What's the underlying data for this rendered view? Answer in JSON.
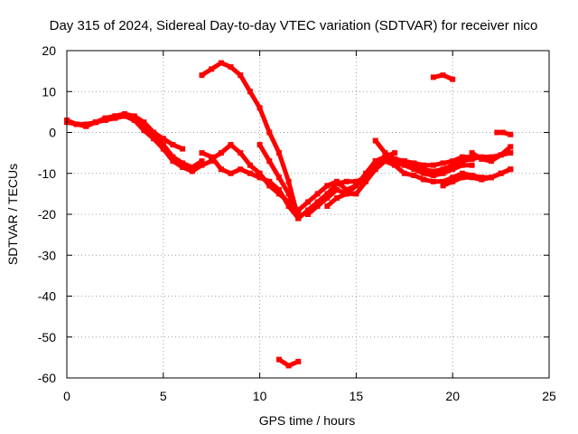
{
  "chart_data": {
    "type": "scatter",
    "title": "Day 315 of 2024, Sidereal Day-to-day VTEC variation (SDTVAR) for receiver nico",
    "xlabel": "GPS time / hours",
    "ylabel": "SDTVAR / TECUs",
    "xlim": [
      0,
      25
    ],
    "ylim": [
      -60,
      20
    ],
    "xticks": [
      0,
      5,
      10,
      15,
      20,
      25
    ],
    "yticks": [
      -60,
      -50,
      -40,
      -30,
      -20,
      -10,
      0,
      10,
      20
    ],
    "grid": true,
    "legend": "none",
    "series": [
      {
        "name": "track-1",
        "x": [
          0,
          0.5,
          1,
          1.5,
          2,
          2.5,
          3,
          3.5,
          4,
          4.5,
          5,
          5.5,
          6,
          6.5,
          7
        ],
        "y": [
          3,
          2,
          1.5,
          2.5,
          3.5,
          4,
          4.5,
          3.5,
          1.5,
          -0.5,
          -3,
          -6,
          -7.5,
          -8.5,
          -7
        ]
      },
      {
        "name": "track-2",
        "x": [
          0,
          0.5,
          1,
          1.5,
          2,
          2.5,
          3,
          3.5,
          4,
          4.5,
          5,
          5.5,
          6,
          6.5,
          7,
          7.5
        ],
        "y": [
          2.5,
          2,
          2,
          2.5,
          3,
          3.5,
          4,
          3,
          0.5,
          -1.5,
          -4,
          -7,
          -8.5,
          -9.5,
          -8,
          -7
        ]
      },
      {
        "name": "track-3",
        "x": [
          1.5,
          2,
          2.5,
          3,
          3.5,
          4,
          4.5,
          5,
          5.5,
          6
        ],
        "y": [
          2.5,
          3.5,
          4,
          4.5,
          4,
          2.5,
          0,
          -1.5,
          -3,
          -4
        ]
      },
      {
        "name": "track-4",
        "x": [
          7,
          7.5,
          8,
          8.5,
          9,
          9.5,
          10,
          10.5,
          11,
          11.5,
          12
        ],
        "y": [
          -5,
          -6,
          -9,
          -10,
          -9,
          -10,
          -11,
          -12,
          -14,
          -18,
          -21
        ]
      },
      {
        "name": "track-5",
        "x": [
          7.5,
          8,
          8.5,
          9,
          9.5,
          10,
          10.5,
          11,
          11.5,
          12
        ],
        "y": [
          -6.5,
          -5,
          -3,
          -5,
          -8,
          -10,
          -13,
          -15,
          -17,
          -19
        ]
      },
      {
        "name": "track-6",
        "x": [
          10,
          10.5,
          11,
          11.5,
          12
        ],
        "y": [
          -3,
          -7,
          -11,
          -15,
          -20
        ]
      },
      {
        "name": "track-7",
        "x": [
          7,
          7.5,
          8,
          8.5,
          9,
          9.5,
          10,
          10.5,
          11,
          11.5,
          12
        ],
        "y": [
          14,
          15.5,
          17,
          16,
          14,
          10,
          6,
          0,
          -5,
          -12,
          -21
        ]
      },
      {
        "name": "track-8",
        "x": [
          11,
          11.5,
          12
        ],
        "y": [
          -55.5,
          -57,
          -56
        ]
      },
      {
        "name": "track-9",
        "x": [
          12,
          12.5,
          13,
          13.5,
          14,
          14.5,
          15,
          15.5,
          16,
          16.5,
          17
        ],
        "y": [
          -21,
          -19,
          -17,
          -15,
          -12.5,
          -12,
          -12,
          -11,
          -8,
          -6,
          -5
        ]
      },
      {
        "name": "track-10",
        "x": [
          12,
          12.5,
          13,
          13.5,
          14,
          14.5,
          15,
          15.5,
          16,
          16.5,
          17,
          17.5,
          18,
          18.5,
          19,
          19.5,
          20,
          20.5,
          21,
          21.5,
          22,
          22.5,
          23
        ],
        "y": [
          -19,
          -17,
          -15,
          -13,
          -12,
          -14,
          -13,
          -11,
          -7,
          -6,
          -6.5,
          -7,
          -8,
          -9,
          -9.5,
          -9,
          -8,
          -7,
          -6.5,
          -6,
          -6,
          -5.5,
          -5
        ]
      },
      {
        "name": "track-11",
        "x": [
          12.5,
          13,
          13.5,
          14,
          14.5,
          15,
          15.5,
          16,
          16.5,
          17,
          17.5,
          18,
          18.5,
          19,
          19.5,
          20,
          20.5,
          21,
          21.5,
          22,
          22.5,
          23
        ],
        "y": [
          -20,
          -18,
          -16,
          -14,
          -15,
          -15,
          -12,
          -9,
          -7,
          -8,
          -10,
          -10.5,
          -11.5,
          -12,
          -12,
          -11,
          -10,
          -10.5,
          -11,
          -11,
          -10,
          -9
        ]
      },
      {
        "name": "track-12",
        "x": [
          13.5,
          14,
          14.5,
          15,
          15.5,
          16,
          16.5,
          17,
          17.5,
          18,
          18.5,
          19,
          19.5,
          20,
          20.5,
          21
        ],
        "y": [
          -18,
          -16,
          -15,
          -13,
          -10,
          -7,
          -6,
          -7.5,
          -8,
          -9,
          -10,
          -10.5,
          -10,
          -9,
          -8,
          -8
        ]
      },
      {
        "name": "track-13",
        "x": [
          16,
          16.5,
          17,
          17.5,
          18,
          18.5,
          19,
          19.5,
          20,
          20.5,
          21
        ],
        "y": [
          -2,
          -5,
          -6.5,
          -7,
          -7.5,
          -8,
          -8,
          -7.5,
          -7,
          -6,
          -6
        ]
      },
      {
        "name": "track-14",
        "x": [
          19,
          19.5,
          20
        ],
        "y": [
          13.5,
          14,
          13
        ]
      },
      {
        "name": "track-15",
        "x": [
          19.5,
          20,
          20.5,
          21,
          21.5,
          22,
          22.5,
          23
        ],
        "y": [
          -13,
          -12,
          -11,
          -11,
          -11.5,
          -11,
          -10,
          -9
        ]
      },
      {
        "name": "track-16",
        "x": [
          21,
          21.5,
          22,
          22.5,
          23
        ],
        "y": [
          -5,
          -6.5,
          -7,
          -5.5,
          -3.5
        ]
      },
      {
        "name": "track-17",
        "x": [
          22.3,
          22.6,
          23
        ],
        "y": [
          0,
          0,
          -0.5
        ]
      }
    ]
  },
  "colors": {
    "series": "#ff0000",
    "grid": "#a0a0a0",
    "axis": "#000000",
    "background": "#ffffff"
  }
}
